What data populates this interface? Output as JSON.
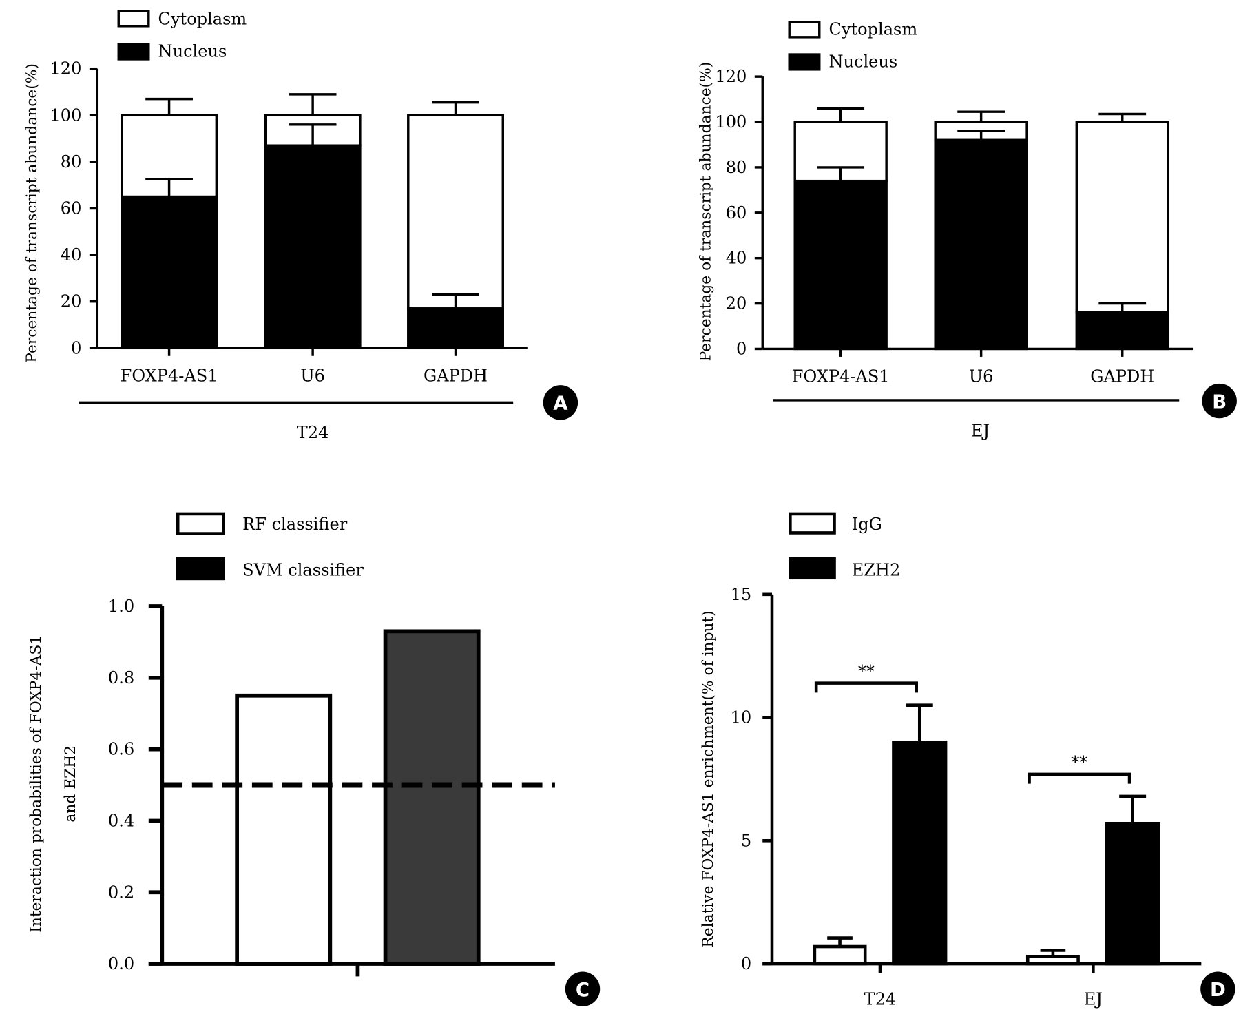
{
  "figure": {
    "colors": {
      "ink": "#000000",
      "paper": "#ffffff",
      "svm_fill": "#3a3a3a"
    }
  },
  "chart_data": [
    {
      "panel": "A",
      "type": "bar",
      "stacked": true,
      "title": "",
      "ylabel": "Percentage of transcript abundance(%)",
      "xlabel": "",
      "group_label": "T24",
      "ylim": [
        0,
        120
      ],
      "yticks": [
        0,
        20,
        40,
        60,
        80,
        100,
        120
      ],
      "categories": [
        "FOXP4-AS1",
        "U6",
        "GAPDH"
      ],
      "legend": [
        "Cytoplasm",
        "Nucleus"
      ],
      "series": [
        {
          "name": "Nucleus",
          "fill": "#000000",
          "values": [
            65,
            87,
            17
          ],
          "errors": [
            7.5,
            9,
            6
          ]
        },
        {
          "name": "Cytoplasm",
          "fill": "#ffffff",
          "values": [
            35,
            13,
            83
          ],
          "errors": [
            7,
            9,
            5.5
          ]
        }
      ]
    },
    {
      "panel": "B",
      "type": "bar",
      "stacked": true,
      "title": "",
      "ylabel": "Percentage of transcript abundance(%)",
      "xlabel": "",
      "group_label": "EJ",
      "ylim": [
        0,
        120
      ],
      "yticks": [
        0,
        20,
        40,
        60,
        80,
        100,
        120
      ],
      "categories": [
        "FOXP4-AS1",
        "U6",
        "GAPDH"
      ],
      "legend": [
        "Cytoplasm",
        "Nucleus"
      ],
      "series": [
        {
          "name": "Nucleus",
          "fill": "#000000",
          "values": [
            74,
            92,
            16
          ],
          "errors": [
            6,
            4,
            4
          ]
        },
        {
          "name": "Cytoplasm",
          "fill": "#ffffff",
          "values": [
            26,
            8,
            84
          ],
          "errors": [
            6,
            4.5,
            3.5
          ]
        }
      ]
    },
    {
      "panel": "C",
      "type": "bar",
      "title": "",
      "ylabel": "Interaction probabilities of FOXP4-AS1 and EZH2",
      "ylabel_lines": [
        "Interaction probabilities of FOXP4-AS1",
        "and EZH2"
      ],
      "xlabel": "",
      "ylim": [
        0,
        1
      ],
      "yticks": [
        "0.0",
        "0.2",
        "0.4",
        "0.6",
        "0.8",
        "1.0"
      ],
      "legend": [
        "RF classifier",
        "SVM classifier"
      ],
      "series": [
        {
          "name": "RF classifier",
          "fill": "#ffffff",
          "value": 0.75
        },
        {
          "name": "SVM classifier",
          "fill": "#3a3a3a",
          "value": 0.93
        }
      ],
      "threshold": 0.5
    },
    {
      "panel": "D",
      "type": "bar",
      "title": "",
      "ylabel": "Relative FOXP4-AS1 enrichment(% of input)",
      "xlabel": "",
      "ylim": [
        0,
        15
      ],
      "yticks": [
        0,
        5,
        10,
        15
      ],
      "categories": [
        "T24",
        "EJ"
      ],
      "legend": [
        "IgG",
        "EZH2"
      ],
      "series": [
        {
          "name": "IgG",
          "fill": "#ffffff",
          "values": [
            0.7,
            0.3
          ],
          "errors": [
            0.35,
            0.25
          ]
        },
        {
          "name": "EZH2",
          "fill": "#000000",
          "values": [
            9.0,
            5.7
          ],
          "errors": [
            1.5,
            1.1
          ]
        }
      ],
      "significance": [
        "**",
        "**"
      ]
    }
  ]
}
